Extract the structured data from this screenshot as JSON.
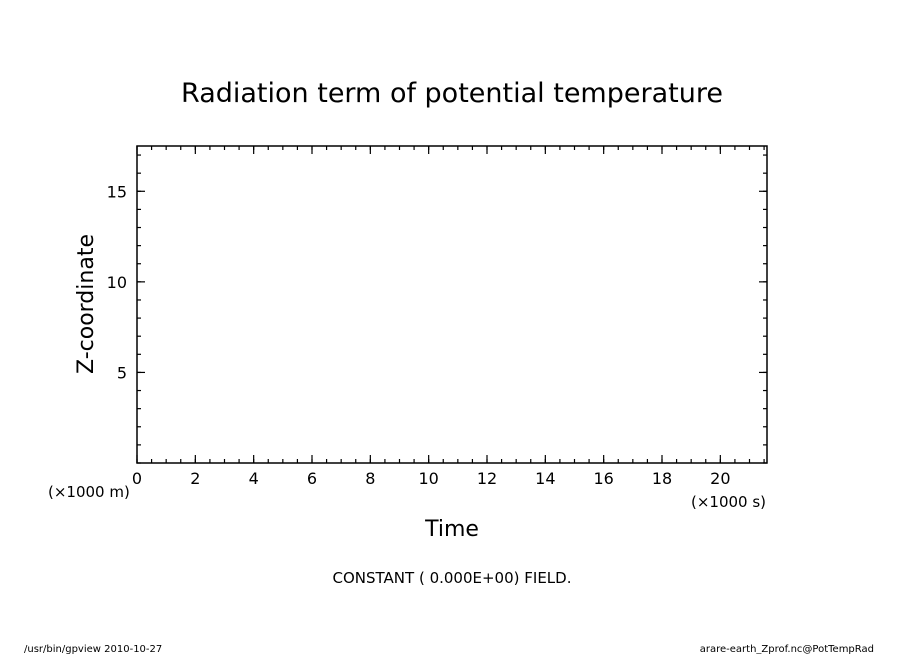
{
  "chart_data": {
    "type": "heatmap",
    "title": "Radiation term of potential temperature",
    "xlabel": "Time",
    "ylabel": "Z-coordinate",
    "x_unit_label": "(×1000 s)",
    "y_unit_label": "(×1000 m)",
    "xlim": [
      0,
      21.6
    ],
    "ylim": [
      0,
      17.5
    ],
    "x_major_ticks": [
      0,
      2,
      4,
      6,
      8,
      10,
      12,
      14,
      16,
      18,
      20
    ],
    "x_minor_step": 0.5,
    "y_major_ticks": [
      5,
      10,
      15
    ],
    "y_minor_step": 1,
    "grid": false,
    "field_value": 0.0,
    "field_message": "CONSTANT ( 0.000E+00) FIELD."
  },
  "footer": {
    "left": "/usr/bin/gpview   2010-10-27",
    "right": "arare-earth_Zprof.nc@PotTempRad"
  }
}
